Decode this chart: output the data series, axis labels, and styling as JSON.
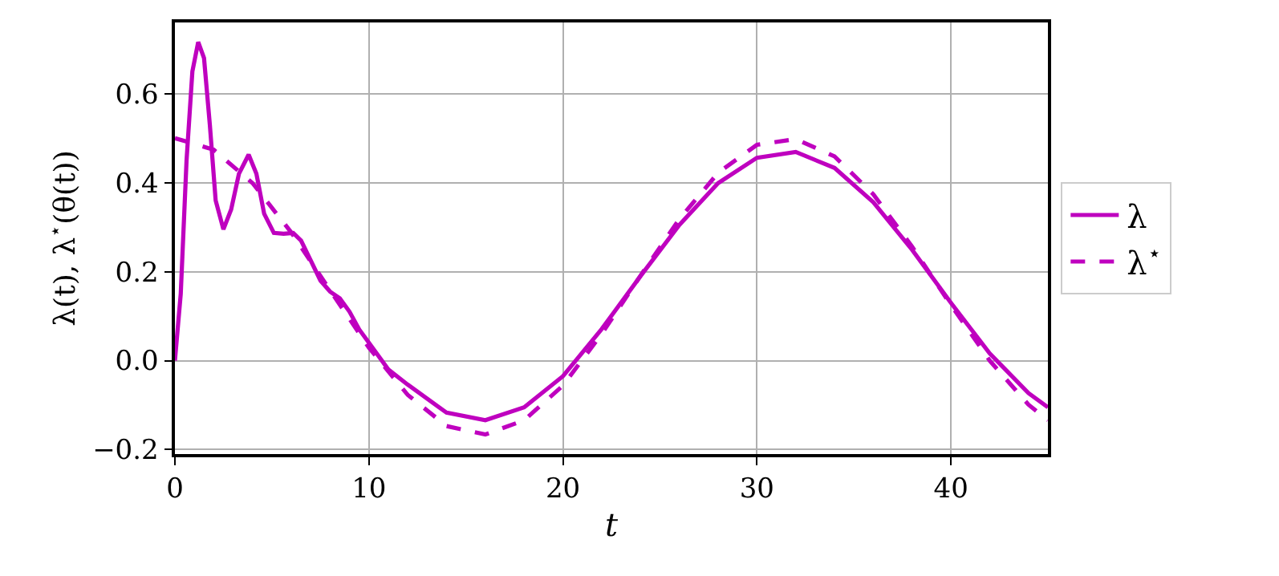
{
  "chart_data": {
    "type": "line",
    "xlabel": "t",
    "ylabel": "λ(t), λ$^{⋆}$(θ(t))",
    "xlim": [
      0,
      45
    ],
    "ylim": [
      -0.21,
      0.76
    ],
    "xticks": [
      0,
      10,
      20,
      30,
      40
    ],
    "yticks": [
      {
        "value": -0.2,
        "label": "−0.2"
      },
      {
        "value": 0.0,
        "label": "0.0"
      },
      {
        "value": 0.2,
        "label": "0.2"
      },
      {
        "value": 0.4,
        "label": "0.4"
      },
      {
        "value": 0.6,
        "label": "0.6"
      }
    ],
    "grid": true,
    "legend": "right",
    "marker": "none",
    "series": [
      {
        "name": "λ",
        "color": "#bf00bf",
        "line_style": "solid",
        "x": [
          0,
          0.3,
          0.6,
          0.9,
          1.2,
          1.5,
          1.8,
          2.1,
          2.5,
          2.9,
          3.3,
          3.8,
          4.2,
          4.6,
          5.1,
          5.6,
          6.1,
          6.5,
          7,
          7.5,
          8,
          8.5,
          9,
          9.5,
          10,
          11,
          12,
          14,
          16,
          18,
          20,
          22,
          24,
          26,
          28,
          30,
          32,
          34,
          36,
          38,
          40,
          42,
          44,
          45
        ],
        "values": [
          0,
          0.15,
          0.45,
          0.65,
          0.716,
          0.68,
          0.53,
          0.36,
          0.295,
          0.34,
          0.42,
          0.463,
          0.42,
          0.33,
          0.287,
          0.285,
          0.287,
          0.27,
          0.225,
          0.18,
          0.155,
          0.14,
          0.11,
          0.07,
          0.04,
          -0.02,
          -0.054,
          -0.117,
          -0.134,
          -0.105,
          -0.035,
          0.071,
          0.19,
          0.305,
          0.399,
          0.456,
          0.469,
          0.433,
          0.356,
          0.249,
          0.13,
          0.016,
          -0.073,
          -0.105
        ]
      },
      {
        "name": "λ$^{⋆}$",
        "color": "#bf00bf",
        "line_style": "dashed",
        "x": [
          0,
          2,
          4,
          6,
          8,
          10,
          12,
          14,
          16,
          18,
          20,
          22,
          24,
          26,
          28,
          30,
          32,
          34,
          36,
          38,
          40,
          42,
          44,
          45
        ],
        "values": [
          0.5,
          0.474,
          0.399,
          0.288,
          0.158,
          0.029,
          -0.077,
          -0.147,
          -0.166,
          -0.134,
          -0.056,
          0.06,
          0.191,
          0.318,
          0.422,
          0.485,
          0.498,
          0.459,
          0.374,
          0.256,
          0.125,
          0.0,
          -0.099,
          -0.134
        ]
      }
    ]
  }
}
